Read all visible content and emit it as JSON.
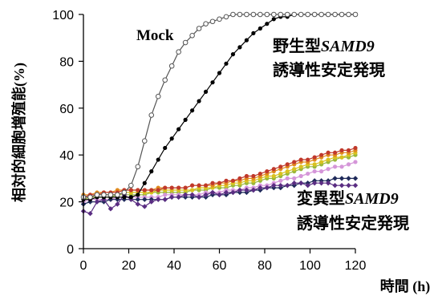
{
  "chart_data": {
    "type": "line",
    "title": "",
    "xlabel": "時間 (h)",
    "ylabel": "相対的細胞増殖能(%)",
    "xlim": [
      0,
      120
    ],
    "ylim": [
      0,
      100
    ],
    "xticks": [
      0,
      20,
      40,
      60,
      80,
      100,
      120
    ],
    "yticks": [
      0,
      20,
      40,
      60,
      80,
      100
    ],
    "grid": false,
    "legend": "none",
    "annotations": [
      {
        "id": "mock",
        "text": "Mock"
      },
      {
        "id": "wt_line1_prefix",
        "text": "野生型",
        "italic_part": "SAMD9"
      },
      {
        "id": "wt_line2",
        "text": "誘導性安定発現"
      },
      {
        "id": "mut_line1_prefix",
        "text": "変異型",
        "italic_part": "SAMD9"
      },
      {
        "id": "mut_line2",
        "text": "誘導性安定発現"
      }
    ],
    "x": [
      0,
      3,
      6,
      9,
      12,
      15,
      18,
      21,
      24,
      27,
      30,
      33,
      36,
      39,
      42,
      45,
      48,
      51,
      54,
      57,
      60,
      63,
      66,
      69,
      72,
      75,
      78,
      81,
      84,
      87,
      90,
      93,
      96,
      99,
      102,
      105,
      108,
      111,
      114,
      117,
      120
    ],
    "series": [
      {
        "key": "mock",
        "color": "#555555",
        "marker": "open-circle",
        "values": [
          22,
          22,
          23,
          23,
          23,
          23,
          24,
          27,
          35,
          46,
          57,
          65,
          72,
          78,
          84,
          88,
          91,
          94,
          96,
          97,
          98,
          99,
          100,
          100,
          100,
          100,
          100,
          100,
          100,
          100,
          100,
          100,
          100,
          100,
          100,
          100,
          100,
          100,
          100,
          100,
          100
        ]
      },
      {
        "key": "wt",
        "color": "#000000",
        "marker": "filled-circle",
        "values": [
          21,
          21,
          22,
          22,
          22,
          22,
          22,
          22,
          23,
          28,
          33,
          38,
          43,
          47,
          51,
          55,
          59,
          63,
          67,
          71,
          75,
          79,
          83,
          86,
          89,
          92,
          94,
          96,
          98,
          99,
          99,
          100,
          100,
          100,
          100,
          100,
          100,
          100,
          100,
          100,
          100
        ]
      },
      {
        "key": "mut_red",
        "color": "#c0392b",
        "marker": "filled-circle",
        "values": [
          22,
          23,
          23,
          24,
          24,
          24,
          25,
          25,
          25,
          25,
          25,
          25,
          26,
          26,
          26,
          26,
          27,
          27,
          27,
          28,
          28,
          29,
          29,
          30,
          31,
          31,
          32,
          33,
          34,
          35,
          36,
          37,
          38,
          38,
          39,
          40,
          41,
          41,
          42,
          42,
          43
        ]
      },
      {
        "key": "mut_orange",
        "color": "#e08a1e",
        "marker": "filled-circle",
        "values": [
          23,
          23,
          24,
          24,
          24,
          25,
          25,
          25,
          25,
          25,
          25,
          26,
          26,
          26,
          26,
          26,
          27,
          27,
          27,
          27,
          28,
          28,
          29,
          29,
          30,
          30,
          31,
          32,
          33,
          34,
          35,
          36,
          37,
          37,
          38,
          39,
          40,
          40,
          41,
          41,
          42
        ]
      },
      {
        "key": "mut_yellow",
        "color": "#d9c21f",
        "marker": "filled-circle",
        "values": [
          22,
          22,
          23,
          23,
          23,
          23,
          24,
          24,
          24,
          24,
          24,
          25,
          25,
          25,
          25,
          25,
          25,
          26,
          26,
          26,
          27,
          27,
          28,
          28,
          29,
          29,
          30,
          31,
          31,
          32,
          33,
          34,
          35,
          36,
          36,
          37,
          38,
          39,
          39,
          40,
          41
        ]
      },
      {
        "key": "mut_green",
        "color": "#9ab83a",
        "marker": "filled-circle",
        "values": [
          21,
          22,
          22,
          22,
          22,
          23,
          23,
          23,
          23,
          23,
          24,
          24,
          24,
          24,
          24,
          24,
          25,
          25,
          25,
          26,
          26,
          26,
          27,
          27,
          28,
          28,
          29,
          30,
          30,
          31,
          32,
          33,
          34,
          35,
          35,
          36,
          37,
          38,
          39,
          39,
          40
        ]
      },
      {
        "key": "mut_pink",
        "color": "#d596d9",
        "marker": "filled-circle",
        "values": [
          20,
          21,
          21,
          21,
          21,
          22,
          22,
          22,
          22,
          22,
          22,
          22,
          23,
          23,
          23,
          23,
          23,
          23,
          24,
          24,
          24,
          25,
          25,
          25,
          26,
          26,
          27,
          27,
          28,
          29,
          30,
          30,
          31,
          32,
          33,
          33,
          34,
          35,
          35,
          36,
          37
        ]
      },
      {
        "key": "mut_navy",
        "color": "#1f2a5a",
        "marker": "filled-diamond",
        "values": [
          19,
          20,
          20,
          20,
          21,
          21,
          21,
          21,
          21,
          21,
          21,
          21,
          21,
          22,
          22,
          22,
          22,
          22,
          22,
          23,
          23,
          23,
          24,
          24,
          24,
          25,
          25,
          26,
          26,
          26,
          27,
          27,
          28,
          28,
          29,
          29,
          29,
          30,
          30,
          30,
          30
        ]
      },
      {
        "key": "mut_purple",
        "color": "#5a2d82",
        "marker": "filled-diamond",
        "values": [
          16,
          15,
          20,
          21,
          17,
          19,
          23,
          21,
          19,
          18,
          20,
          21,
          21,
          22,
          22,
          23,
          23,
          22,
          23,
          24,
          23,
          24,
          24,
          25,
          25,
          25,
          26,
          26,
          27,
          27,
          27,
          28,
          28,
          27,
          28,
          28,
          28,
          27,
          27,
          27,
          27
        ]
      }
    ]
  }
}
